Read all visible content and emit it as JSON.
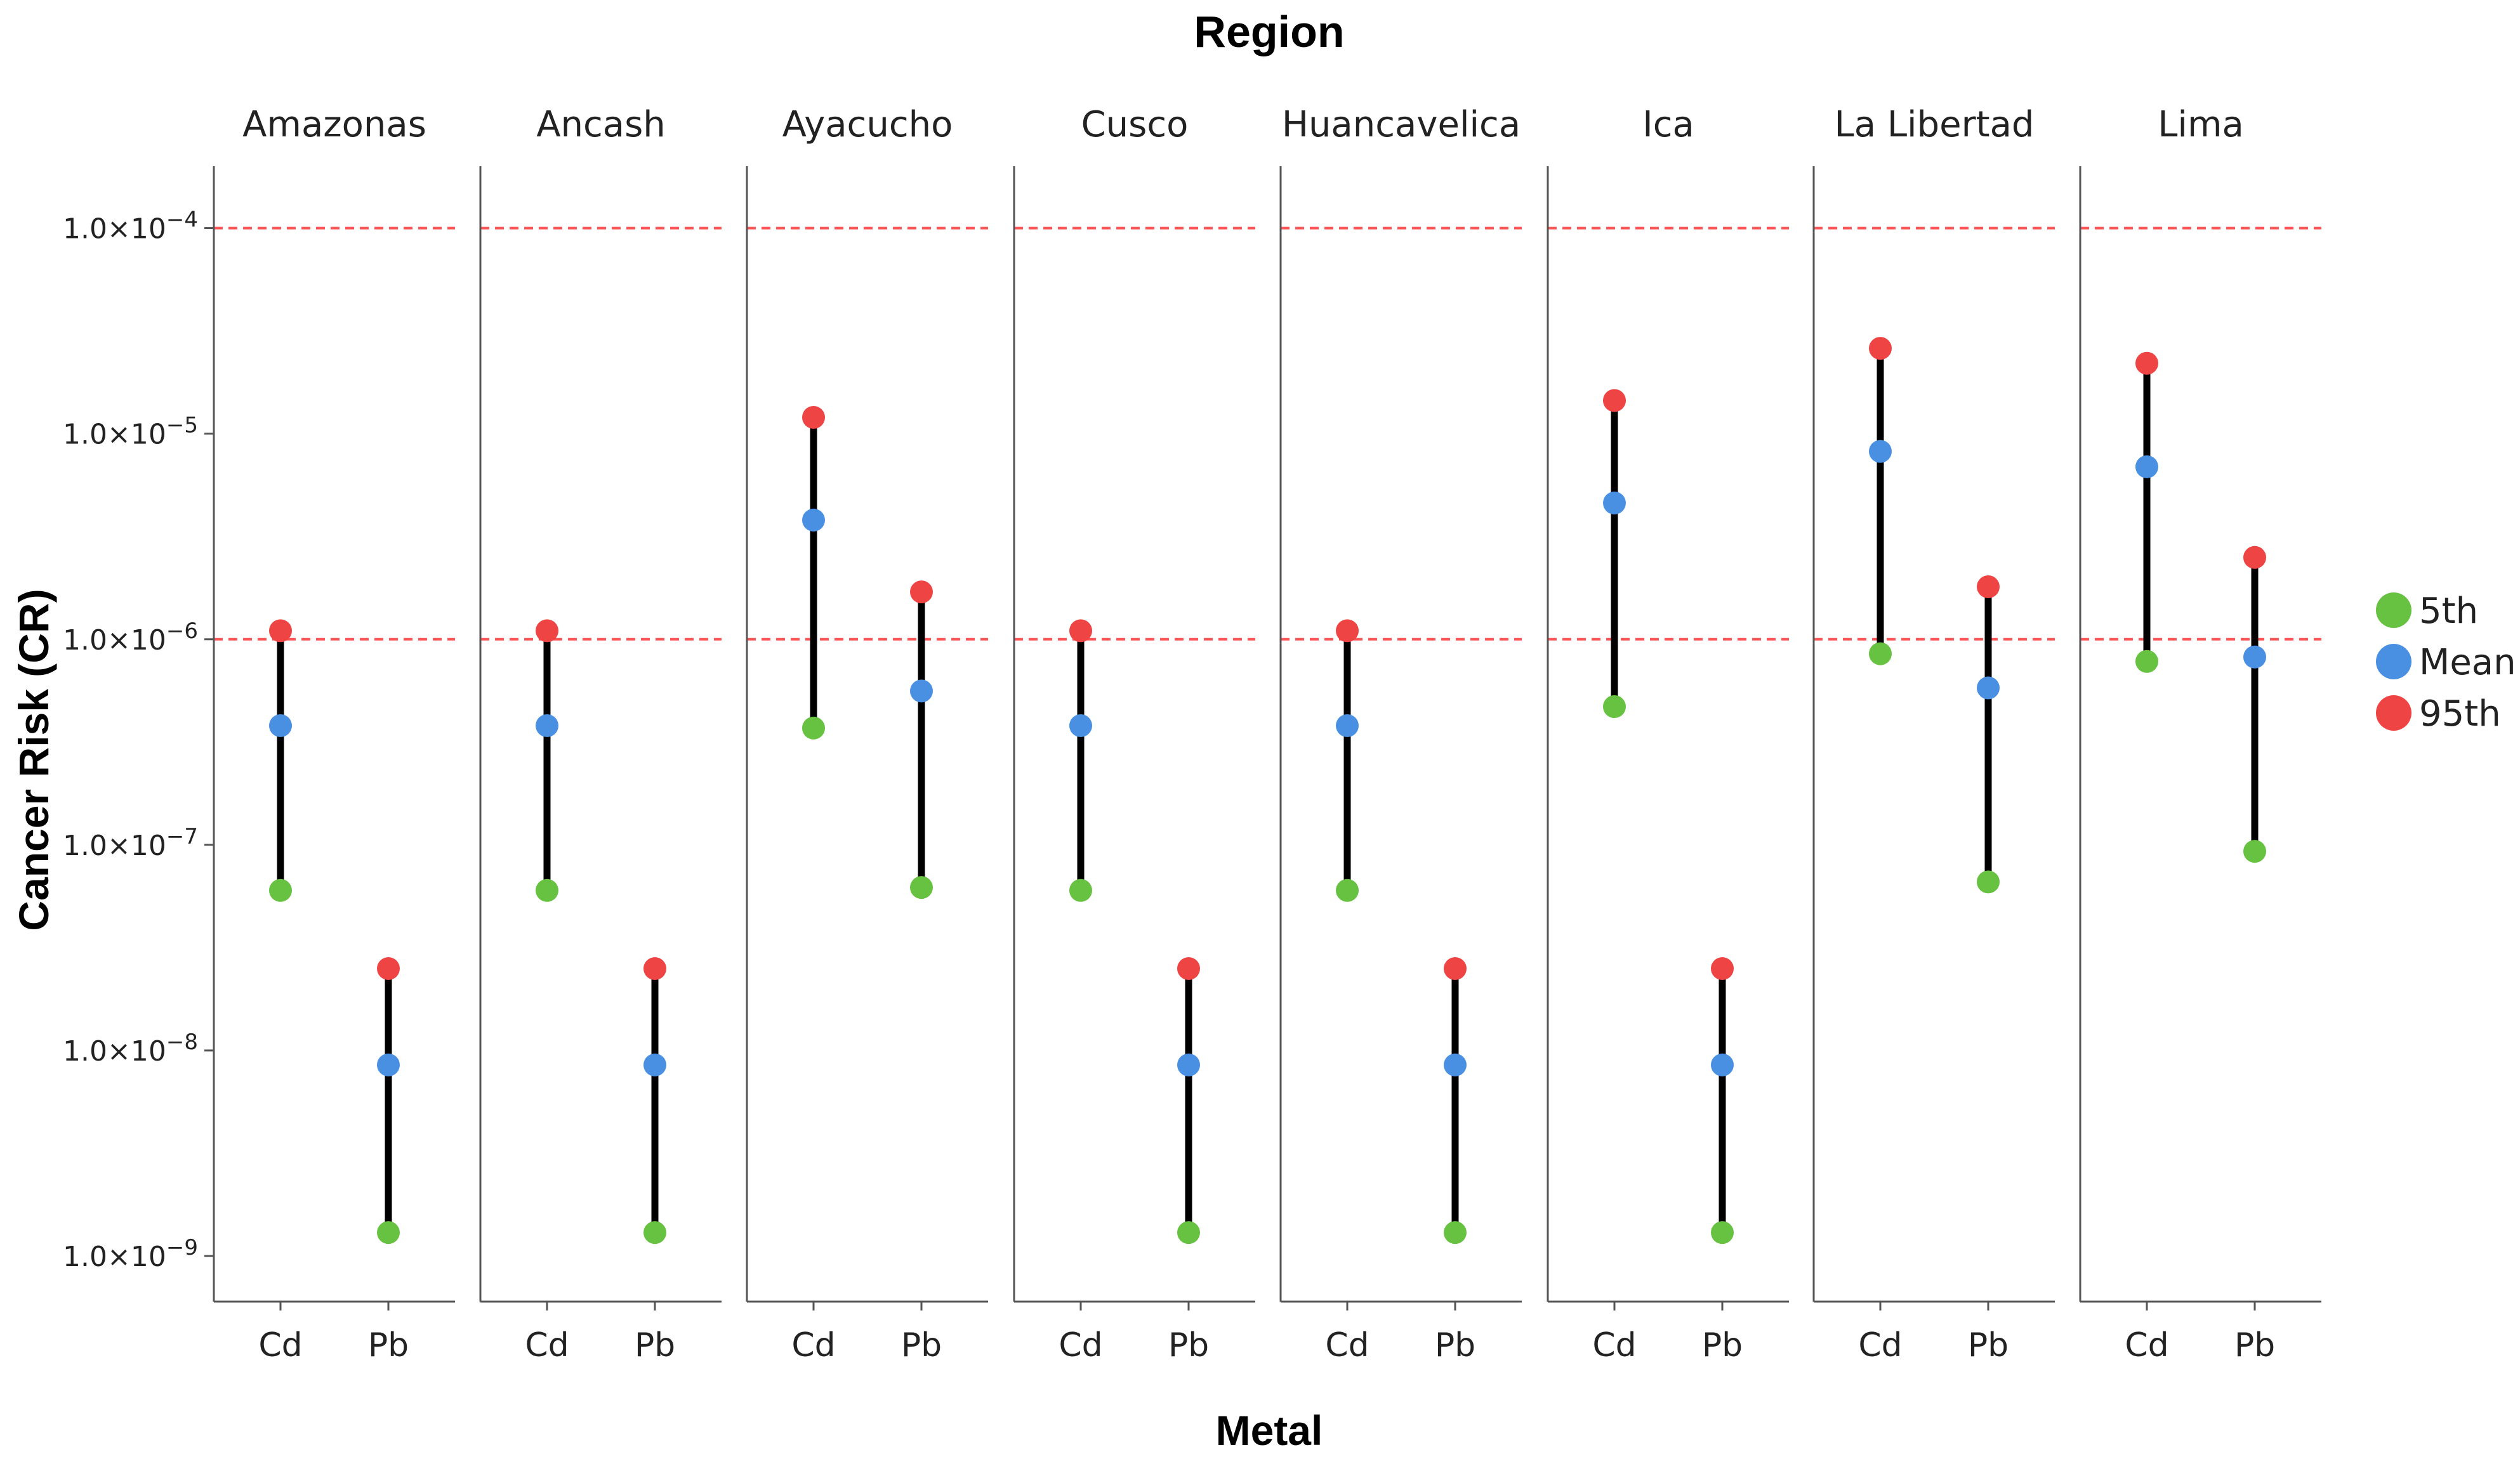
{
  "chart_data": {
    "type": "scatter",
    "title": "Region",
    "xlabel": "Metal",
    "ylabel": "Cancer Risk (CR)",
    "yscale": "log10",
    "ylim": [
      6e-10,
      0.0002
    ],
    "y_ticks": [
      {
        "value": 0.0001,
        "mant": "1.0×10",
        "exp": "−4"
      },
      {
        "value": 1e-05,
        "mant": "1.0×10",
        "exp": "−5"
      },
      {
        "value": 1e-06,
        "mant": "1.0×10",
        "exp": "−6"
      },
      {
        "value": 1e-07,
        "mant": "1.0×10",
        "exp": "−7"
      },
      {
        "value": 1e-08,
        "mant": "1.0×10",
        "exp": "−8"
      },
      {
        "value": 1e-09,
        "mant": "1.0×10",
        "exp": "−9"
      }
    ],
    "reference_lines": [
      0.0001,
      1e-06
    ],
    "categories": [
      "Cd",
      "Pb"
    ],
    "panels": [
      {
        "region": "Amazonas",
        "metals": [
          {
            "metal": "Cd",
            "p5": 6e-08,
            "mean": 3.8e-07,
            "p95": 1.1e-06
          },
          {
            "metal": "Pb",
            "p5": 1.3e-09,
            "mean": 8.5e-09,
            "p95": 2.5e-08
          }
        ]
      },
      {
        "region": "Ancash",
        "metals": [
          {
            "metal": "Cd",
            "p5": 6e-08,
            "mean": 3.8e-07,
            "p95": 1.1e-06
          },
          {
            "metal": "Pb",
            "p5": 1.3e-09,
            "mean": 8.5e-09,
            "p95": 2.5e-08
          }
        ]
      },
      {
        "region": "Ayacucho",
        "metals": [
          {
            "metal": "Cd",
            "p5": 3.7e-07,
            "mean": 3.8e-06,
            "p95": 1.2e-05
          },
          {
            "metal": "Pb",
            "p5": 6.2e-08,
            "mean": 5.6e-07,
            "p95": 1.7e-06
          }
        ]
      },
      {
        "region": "Cusco",
        "metals": [
          {
            "metal": "Cd",
            "p5": 6e-08,
            "mean": 3.8e-07,
            "p95": 1.1e-06
          },
          {
            "metal": "Pb",
            "p5": 1.3e-09,
            "mean": 8.5e-09,
            "p95": 2.5e-08
          }
        ]
      },
      {
        "region": "Huancavelica",
        "metals": [
          {
            "metal": "Cd",
            "p5": 6e-08,
            "mean": 3.8e-07,
            "p95": 1.1e-06
          },
          {
            "metal": "Pb",
            "p5": 1.3e-09,
            "mean": 8.5e-09,
            "p95": 2.5e-08
          }
        ]
      },
      {
        "region": "Ica",
        "metals": [
          {
            "metal": "Cd",
            "p5": 4.7e-07,
            "mean": 4.6e-06,
            "p95": 1.45e-05
          },
          {
            "metal": "Pb",
            "p5": 1.3e-09,
            "mean": 8.5e-09,
            "p95": 2.5e-08
          }
        ]
      },
      {
        "region": "La Libertad",
        "metals": [
          {
            "metal": "Cd",
            "p5": 8.5e-07,
            "mean": 8.2e-06,
            "p95": 2.6e-05
          },
          {
            "metal": "Pb",
            "p5": 6.6e-08,
            "mean": 5.8e-07,
            "p95": 1.8e-06
          }
        ]
      },
      {
        "region": "Lima",
        "metals": [
          {
            "metal": "Cd",
            "p5": 7.8e-07,
            "mean": 6.9e-06,
            "p95": 2.2e-05
          },
          {
            "metal": "Pb",
            "p5": 9.3e-08,
            "mean": 8.2e-07,
            "p95": 2.5e-06
          }
        ]
      }
    ],
    "legend": {
      "position": "right",
      "entries": [
        {
          "key": "p5",
          "label": "5th",
          "color": "#66c240"
        },
        {
          "key": "mean",
          "label": "Mean",
          "color": "#4a90e2"
        },
        {
          "key": "p95",
          "label": "95th",
          "color": "#ee4444"
        }
      ]
    },
    "colors": {
      "whisker": "#000000",
      "reference_line": "#ff5555",
      "axis": "#555555"
    }
  }
}
